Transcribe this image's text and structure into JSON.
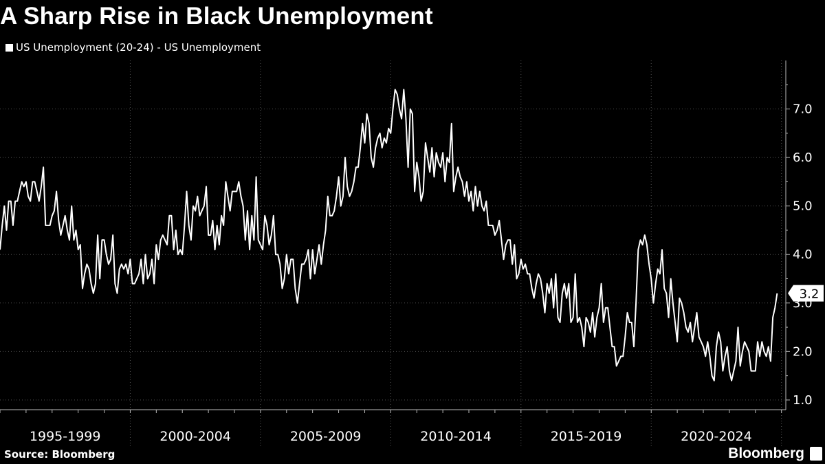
{
  "title": "A Sharp Rise in Black Unemployment",
  "legend": {
    "label": "US Unemployment (20-24) - US Unemployment"
  },
  "source": "Source: Bloomberg",
  "brand": "Bloomberg",
  "colors": {
    "background": "#000000",
    "line": "#ffffff",
    "grid": "#555555"
  },
  "last_value_label": "3.2",
  "chart_data": {
    "type": "line",
    "title": "A Sharp Rise in Black Unemployment",
    "xlabel": "",
    "ylabel": "",
    "x_start": "1995-01",
    "x_end": "2025-03",
    "ylim": [
      0.8,
      8.0
    ],
    "yticks": [
      1.0,
      2.0,
      3.0,
      4.0,
      5.0,
      6.0,
      7.0
    ],
    "ytick_labels": [
      "1.0",
      "2.0",
      "3.0",
      "4.0",
      "5.0",
      "6.0",
      "7.0"
    ],
    "x_period_labels": [
      "1995-1999",
      "2000-2004",
      "2005-2009",
      "2010-2014",
      "2015-2019",
      "2020-2024"
    ],
    "grid": true,
    "legend_position": "top-left",
    "series": [
      {
        "name": "US Unemployment (20-24) - US Unemployment",
        "start": "1995-01",
        "frequency": "monthly",
        "values": [
          4.1,
          4.6,
          5.0,
          4.5,
          5.1,
          5.1,
          4.6,
          5.1,
          5.1,
          5.3,
          5.5,
          5.4,
          5.5,
          5.2,
          5.1,
          5.5,
          5.5,
          5.3,
          5.1,
          5.4,
          5.8,
          4.6,
          4.6,
          4.6,
          4.8,
          4.9,
          5.3,
          4.7,
          4.4,
          4.6,
          4.8,
          4.5,
          4.3,
          5.0,
          4.3,
          4.5,
          4.1,
          4.2,
          3.3,
          3.6,
          3.8,
          3.7,
          3.4,
          3.2,
          3.4,
          4.4,
          3.5,
          4.3,
          4.3,
          4.0,
          3.8,
          3.9,
          4.4,
          3.4,
          3.2,
          3.7,
          3.8,
          3.7,
          3.8,
          3.6,
          3.9,
          3.4,
          3.4,
          3.5,
          3.6,
          3.9,
          3.4,
          4.0,
          3.5,
          3.6,
          3.9,
          3.4,
          4.2,
          3.9,
          4.3,
          4.4,
          4.3,
          4.2,
          4.8,
          4.8,
          4.1,
          4.5,
          4.0,
          4.1,
          4.0,
          4.6,
          5.3,
          4.6,
          4.3,
          5.0,
          4.9,
          5.2,
          4.8,
          4.9,
          5.0,
          5.4,
          4.4,
          4.4,
          4.7,
          4.1,
          4.6,
          4.2,
          4.8,
          4.6,
          5.5,
          5.2,
          4.9,
          5.3,
          5.3,
          5.3,
          5.5,
          5.2,
          5.0,
          4.3,
          4.9,
          4.1,
          4.8,
          4.3,
          5.6,
          4.3,
          4.2,
          4.1,
          4.8,
          4.6,
          4.2,
          4.4,
          4.8,
          4.0,
          4.0,
          3.8,
          3.3,
          3.5,
          4.0,
          3.6,
          3.9,
          3.9,
          3.3,
          3.0,
          3.4,
          3.8,
          3.8,
          3.9,
          4.1,
          3.5,
          4.1,
          3.6,
          3.9,
          4.2,
          3.8,
          4.2,
          4.5,
          5.2,
          4.8,
          4.8,
          4.9,
          5.2,
          5.6,
          5.0,
          5.2,
          6.0,
          5.4,
          5.2,
          5.3,
          5.5,
          5.8,
          5.8,
          6.2,
          6.7,
          6.3,
          6.9,
          6.7,
          6.0,
          5.8,
          6.2,
          6.4,
          6.5,
          6.2,
          6.4,
          6.3,
          6.6,
          6.5,
          7.0,
          7.4,
          7.3,
          7.0,
          6.8,
          7.4,
          6.8,
          5.8,
          7.0,
          6.9,
          5.3,
          5.9,
          5.6,
          5.1,
          5.3,
          6.3,
          6.0,
          5.7,
          6.2,
          5.6,
          6.1,
          5.9,
          5.8,
          6.1,
          5.5,
          6.0,
          5.9,
          6.7,
          5.3,
          5.6,
          5.8,
          5.6,
          5.5,
          5.2,
          5.5,
          5.1,
          5.3,
          4.9,
          5.4,
          5.0,
          5.3,
          5.0,
          4.9,
          5.1,
          4.6,
          4.6,
          4.6,
          4.4,
          4.5,
          4.7,
          4.3,
          3.9,
          4.2,
          4.3,
          4.3,
          3.8,
          4.2,
          3.5,
          3.6,
          3.9,
          3.7,
          3.8,
          3.6,
          3.6,
          3.3,
          3.1,
          3.4,
          3.6,
          3.5,
          3.2,
          2.8,
          3.4,
          3.2,
          3.5,
          2.9,
          3.6,
          2.7,
          2.6,
          3.2,
          3.4,
          3.1,
          3.4,
          2.6,
          2.7,
          3.6,
          2.6,
          2.7,
          2.5,
          2.1,
          2.7,
          2.6,
          2.4,
          2.8,
          2.3,
          2.7,
          2.9,
          3.4,
          2.6,
          2.9,
          2.9,
          2.5,
          2.1,
          2.1,
          1.7,
          1.8,
          1.9,
          1.9,
          2.3,
          2.8,
          2.6,
          2.6,
          2.1,
          3.0,
          4.1,
          4.3,
          4.2,
          4.4,
          4.2,
          3.8,
          3.5,
          3.0,
          3.4,
          3.7,
          3.6,
          4.1,
          3.3,
          3.2,
          2.7,
          3.5,
          3.0,
          2.6,
          2.2,
          3.1,
          3.0,
          2.8,
          2.5,
          2.4,
          2.6,
          2.2,
          2.5,
          2.8,
          2.3,
          2.2,
          2.1,
          1.9,
          2.2,
          1.9,
          1.5,
          1.4,
          2.1,
          2.4,
          2.2,
          1.6,
          1.9,
          2.1,
          1.6,
          1.4,
          1.6,
          1.8,
          2.5,
          1.7,
          2.0,
          2.2,
          2.1,
          2.0,
          1.6,
          1.6,
          1.6,
          2.2,
          1.9,
          2.2,
          2.0,
          1.9,
          2.1,
          1.8,
          2.7,
          2.9,
          3.2
        ]
      }
    ]
  }
}
